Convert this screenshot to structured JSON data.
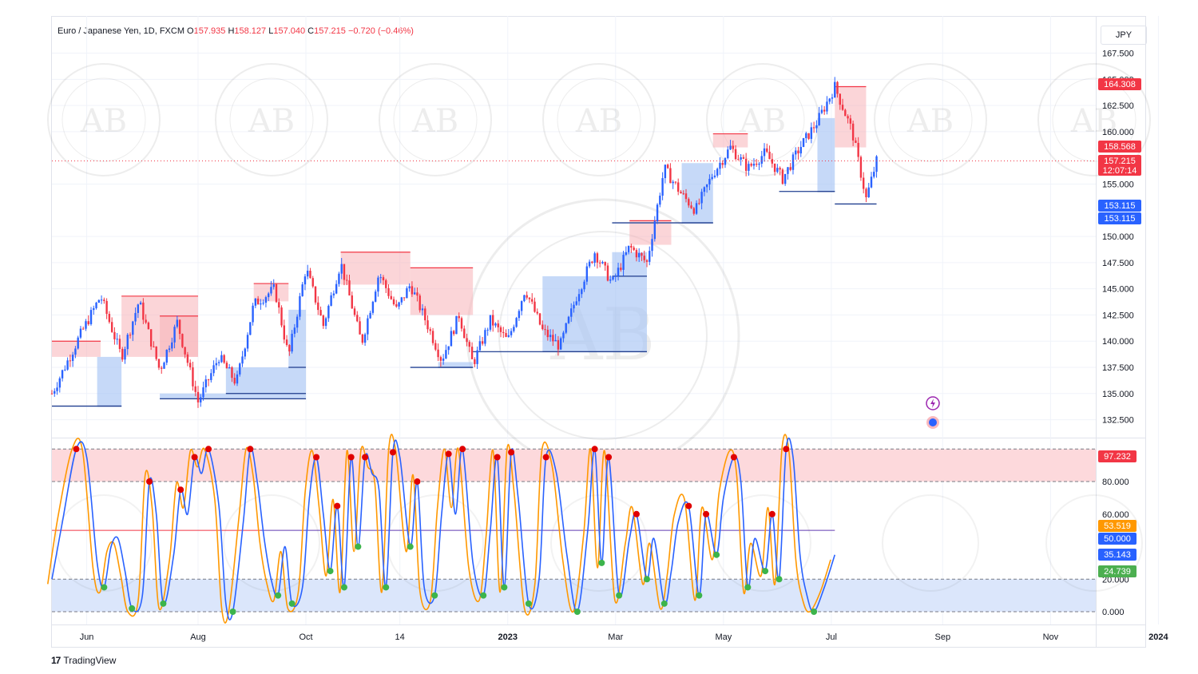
{
  "header": {
    "symbol": "Euro / Japanese Yen, 1D, FXCM",
    "o_label": "O",
    "o_value": "157.935",
    "h_label": "H",
    "h_value": "158.127",
    "l_label": "L",
    "l_value": "157.040",
    "c_label": "C",
    "c_value": "157.215",
    "change": "−0.720 (−0.46%)"
  },
  "currency_button": "JPY",
  "branding": "TradingView",
  "watermark_text": "AB",
  "colors": {
    "up": "#2962ff",
    "down": "#f23645",
    "supply_zone": "#f7b3b8",
    "demand_zone": "#a7c4f5",
    "k_line": "#2962ff",
    "d_line": "#ff9800",
    "overbought_zone": "#fdd9dc",
    "oversold_zone": "#dbe6fb"
  },
  "chart_data": [
    {
      "type": "candlestick",
      "symbol": "EURJPY",
      "timeframe": "1D",
      "x_ticks": [
        "Jun",
        "Aug",
        "Oct",
        "14",
        "2023",
        "Mar",
        "May",
        "Jul",
        "Sep",
        "Nov",
        "2024",
        "Mar"
      ],
      "y_ticks": [
        "167.500",
        "165.000",
        "162.500",
        "160.000",
        "155.000",
        "150.000",
        "147.500",
        "145.000",
        "142.500",
        "140.000",
        "137.500",
        "135.000",
        "132.500"
      ],
      "ylim": [
        132.5,
        167.5
      ],
      "price_labels": [
        {
          "value": "164.308",
          "color": "#f23645"
        },
        {
          "value": "158.568",
          "color": "#f23645"
        },
        {
          "value": "157.215",
          "color": "#f23645",
          "sub": "12:07:14"
        },
        {
          "value": "153.115",
          "color": "#2962ff"
        },
        {
          "value": "153.115",
          "color": "#2962ff"
        }
      ],
      "current_price": 157.215,
      "close_path": [
        [
          0,
          135.0
        ],
        [
          8,
          140.5
        ],
        [
          14,
          144.3
        ],
        [
          20,
          138.5
        ],
        [
          25,
          143.8
        ],
        [
          31,
          137.2
        ],
        [
          36,
          141.8
        ],
        [
          42,
          134.2
        ],
        [
          48,
          138.5
        ],
        [
          53,
          136.0
        ],
        [
          58,
          143.5
        ],
        [
          64,
          145.0
        ],
        [
          68,
          138.5
        ],
        [
          73,
          147.0
        ],
        [
          78,
          141.5
        ],
        [
          83,
          147.5
        ],
        [
          89,
          139.8
        ],
        [
          94,
          146.5
        ],
        [
          99,
          143.0
        ],
        [
          103,
          145.4
        ],
        [
          108,
          141.5
        ],
        [
          112,
          138.2
        ],
        [
          117,
          142.5
        ],
        [
          121,
          137.8
        ],
        [
          126,
          142.0
        ],
        [
          131,
          140.0
        ],
        [
          136,
          145.0
        ],
        [
          141,
          141.0
        ],
        [
          146,
          139.5
        ],
        [
          151,
          144.5
        ],
        [
          156,
          148.5
        ],
        [
          161,
          145.5
        ],
        [
          166,
          149.0
        ],
        [
          171,
          147.5
        ],
        [
          176,
          156.5
        ],
        [
          181,
          154.0
        ],
        [
          185,
          152.5
        ],
        [
          190,
          156.0
        ],
        [
          195,
          158.5
        ],
        [
          200,
          156.5
        ],
        [
          205,
          158.0
        ],
        [
          210,
          155.5
        ],
        [
          215,
          158.5
        ],
        [
          220,
          161.0
        ],
        [
          225,
          164.3
        ],
        [
          230,
          160.0
        ],
        [
          234,
          153.6
        ],
        [
          237,
          157.2
        ]
      ],
      "x_domain": [
        0,
        300
      ],
      "supply_zones": [
        {
          "x": [
            0,
            14
          ],
          "y": [
            138.5,
            140.0
          ]
        },
        {
          "x": [
            20,
            42
          ],
          "y": [
            138.5,
            144.3
          ]
        },
        {
          "x": [
            31,
            42
          ],
          "y": [
            138.5,
            142.4
          ]
        },
        {
          "x": [
            58,
            68
          ],
          "y": [
            143.8,
            145.5
          ]
        },
        {
          "x": [
            83,
            103
          ],
          "y": [
            145.4,
            148.5
          ]
        },
        {
          "x": [
            103,
            121
          ],
          "y": [
            142.5,
            147.0
          ]
        },
        {
          "x": [
            166,
            178
          ],
          "y": [
            149.2,
            151.5
          ]
        },
        {
          "x": [
            190,
            200
          ],
          "y": [
            158.5,
            159.8
          ]
        },
        {
          "x": [
            225,
            234
          ],
          "y": [
            158.5,
            164.3
          ]
        }
      ],
      "demand_zones": [
        {
          "x": [
            0,
            20
          ],
          "y": [
            133.8,
            133.8
          ]
        },
        {
          "x": [
            13,
            20
          ],
          "y": [
            133.8,
            138.5
          ]
        },
        {
          "x": [
            31,
            73
          ],
          "y": [
            134.5,
            135.0
          ]
        },
        {
          "x": [
            50,
            73
          ],
          "y": [
            135.0,
            137.5
          ]
        },
        {
          "x": [
            68,
            73
          ],
          "y": [
            137.5,
            143.0
          ]
        },
        {
          "x": [
            103,
            121
          ],
          "y": [
            137.5,
            137.5
          ]
        },
        {
          "x": [
            111,
            121
          ],
          "y": [
            137.5,
            138.0
          ]
        },
        {
          "x": [
            121,
            171
          ],
          "y": [
            139.0,
            139.0
          ]
        },
        {
          "x": [
            141,
            171
          ],
          "y": [
            139.0,
            146.2
          ]
        },
        {
          "x": [
            161,
            171
          ],
          "y": [
            146.2,
            148.5
          ]
        },
        {
          "x": [
            161,
            190
          ],
          "y": [
            151.3,
            151.3
          ]
        },
        {
          "x": [
            181,
            190
          ],
          "y": [
            151.3,
            157.0
          ]
        },
        {
          "x": [
            209,
            225
          ],
          "y": [
            154.3,
            154.3
          ]
        },
        {
          "x": [
            220,
            225
          ],
          "y": [
            154.3,
            161.3
          ]
        },
        {
          "x": [
            225,
            237
          ],
          "y": [
            153.1,
            153.1
          ]
        }
      ]
    },
    {
      "type": "line",
      "name": "stochastic",
      "y_ticks": [
        "80.000",
        "60.000",
        "20.000",
        "0.000"
      ],
      "ylim": [
        0,
        100
      ],
      "levels": [
        100,
        80,
        50,
        20,
        0
      ],
      "value_labels": [
        {
          "value": "97.232",
          "color": "#f23645"
        },
        {
          "value": "53.519",
          "color": "#ff9800"
        },
        {
          "value": "50.000",
          "color": "#2962ff"
        },
        {
          "value": "35.143",
          "color": "#2962ff"
        },
        {
          "value": "24.739",
          "color": "#4caf50"
        }
      ],
      "k_path": [
        [
          0,
          20
        ],
        [
          3,
          55
        ],
        [
          7,
          100
        ],
        [
          10,
          95
        ],
        [
          13,
          30
        ],
        [
          15,
          15
        ],
        [
          17,
          40
        ],
        [
          19,
          45
        ],
        [
          21,
          25
        ],
        [
          23,
          2
        ],
        [
          26,
          10
        ],
        [
          28,
          80
        ],
        [
          30,
          60
        ],
        [
          32,
          5
        ],
        [
          35,
          35
        ],
        [
          37,
          75
        ],
        [
          39,
          60
        ],
        [
          41,
          95
        ],
        [
          43,
          85
        ],
        [
          45,
          100
        ],
        [
          48,
          65
        ],
        [
          50,
          5
        ],
        [
          52,
          0
        ],
        [
          55,
          55
        ],
        [
          57,
          100
        ],
        [
          59,
          80
        ],
        [
          61,
          45
        ],
        [
          63,
          20
        ],
        [
          65,
          10
        ],
        [
          67,
          40
        ],
        [
          69,
          5
        ],
        [
          72,
          15
        ],
        [
          74,
          70
        ],
        [
          76,
          95
        ],
        [
          78,
          60
        ],
        [
          80,
          25
        ],
        [
          82,
          65
        ],
        [
          84,
          15
        ],
        [
          86,
          95
        ],
        [
          88,
          40
        ],
        [
          90,
          95
        ],
        [
          92,
          85
        ],
        [
          94,
          75
        ],
        [
          96,
          15
        ],
        [
          98,
          98
        ],
        [
          100,
          95
        ],
        [
          103,
          40
        ],
        [
          105,
          80
        ],
        [
          107,
          15
        ],
        [
          110,
          10
        ],
        [
          112,
          60
        ],
        [
          114,
          97
        ],
        [
          116,
          60
        ],
        [
          118,
          100
        ],
        [
          121,
          30
        ],
        [
          124,
          10
        ],
        [
          126,
          50
        ],
        [
          128,
          95
        ],
        [
          130,
          15
        ],
        [
          132,
          98
        ],
        [
          134,
          70
        ],
        [
          137,
          5
        ],
        [
          140,
          20
        ],
        [
          142,
          95
        ],
        [
          145,
          85
        ],
        [
          148,
          35
        ],
        [
          151,
          0
        ],
        [
          154,
          50
        ],
        [
          156,
          100
        ],
        [
          158,
          30
        ],
        [
          160,
          95
        ],
        [
          163,
          10
        ],
        [
          166,
          45
        ],
        [
          168,
          60
        ],
        [
          171,
          20
        ],
        [
          173,
          45
        ],
        [
          176,
          5
        ],
        [
          178,
          25
        ],
        [
          180,
          55
        ],
        [
          183,
          65
        ],
        [
          186,
          10
        ],
        [
          188,
          60
        ],
        [
          191,
          35
        ],
        [
          193,
          70
        ],
        [
          196,
          95
        ],
        [
          198,
          80
        ],
        [
          200,
          15
        ],
        [
          202,
          45
        ],
        [
          205,
          25
        ],
        [
          207,
          60
        ],
        [
          209,
          20
        ],
        [
          211,
          100
        ],
        [
          213,
          95
        ],
        [
          215,
          35
        ],
        [
          217,
          10
        ],
        [
          219,
          0
        ],
        [
          222,
          15
        ],
        [
          225,
          35
        ]
      ],
      "d_offset": 1.2,
      "x_domain": [
        0,
        300
      ]
    }
  ]
}
